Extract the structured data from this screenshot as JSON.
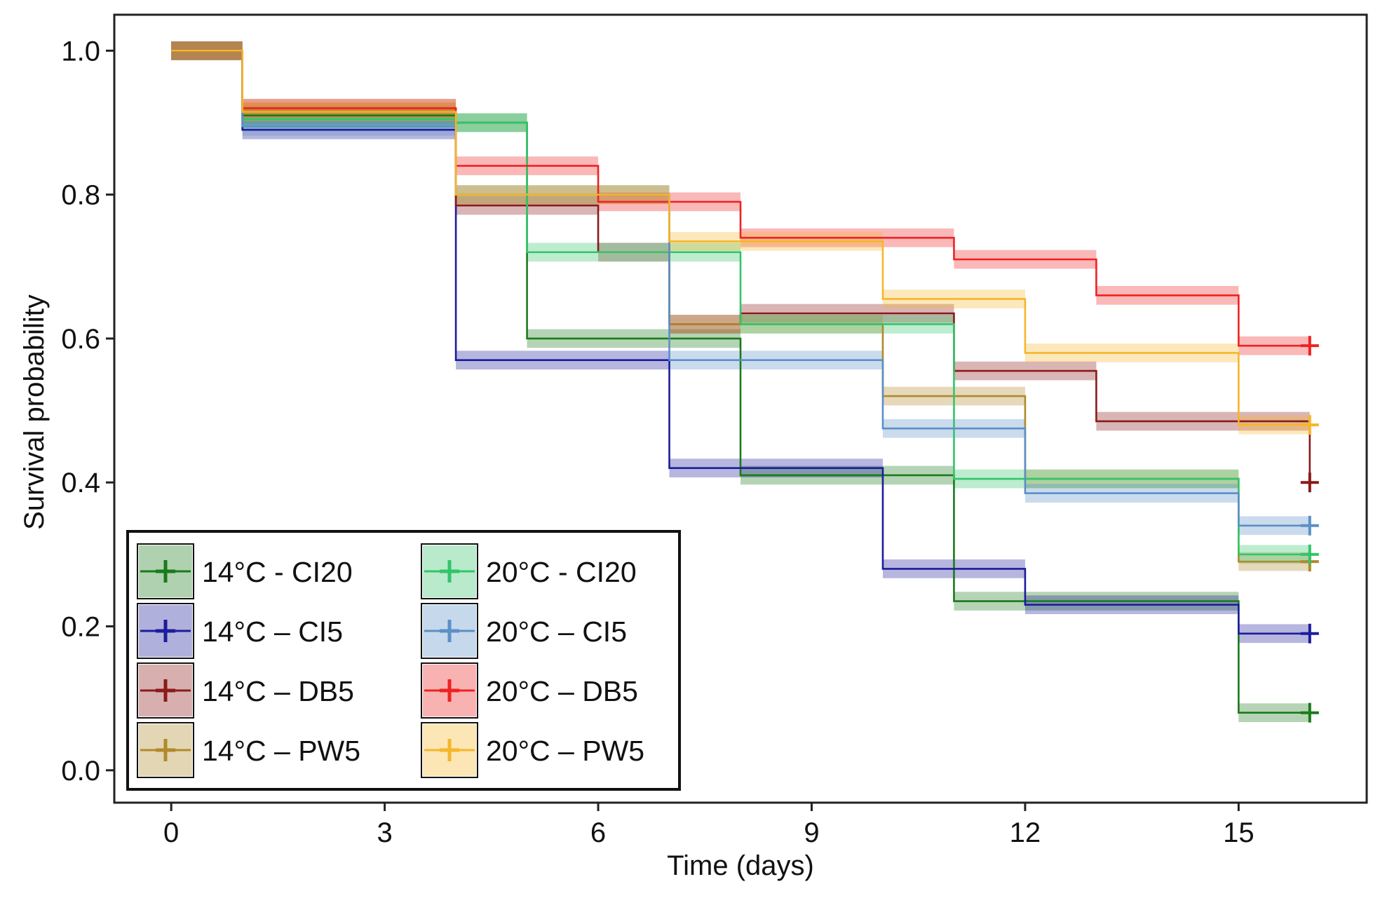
{
  "chart_data": {
    "type": "line",
    "subtype": "kaplan-meier-step",
    "xlabel": "Time (days)",
    "ylabel": "Survival probability",
    "xlim": [
      -0.8,
      16.8
    ],
    "ylim": [
      -0.045,
      1.05
    ],
    "xticks": [
      0,
      3,
      6,
      9,
      12,
      15
    ],
    "yticks": [
      0.0,
      0.2,
      0.4,
      0.6,
      0.8,
      1.0
    ],
    "xtick_labels": [
      "0",
      "3",
      "6",
      "9",
      "12",
      "15"
    ],
    "ytick_labels": [
      "0.0",
      "0.2",
      "0.4",
      "0.6",
      "0.8",
      "1.0"
    ],
    "grid": false,
    "confidence_band": true,
    "censor_marker": "plus",
    "legend_position": "bottom-left",
    "legend_columns": 2,
    "series": [
      {
        "name": "14°C - CI20",
        "color": "#1a7a1a",
        "x": [
          0,
          1,
          4,
          5,
          8,
          11,
          15,
          16
        ],
        "y": [
          1.0,
          0.91,
          0.9,
          0.6,
          0.41,
          0.235,
          0.08,
          0.08
        ]
      },
      {
        "name": "14°C – CI5",
        "color": "#1c1c9c",
        "x": [
          0,
          1,
          4,
          7,
          10,
          12,
          15,
          16
        ],
        "y": [
          1.0,
          0.89,
          0.57,
          0.42,
          0.28,
          0.23,
          0.19,
          0.19
        ]
      },
      {
        "name": "14°C – DB5",
        "color": "#8b1a1a",
        "x": [
          0,
          1,
          4,
          6,
          7,
          8,
          11,
          13,
          16
        ],
        "y": [
          1.0,
          0.915,
          0.785,
          0.72,
          0.62,
          0.635,
          0.555,
          0.485,
          0.4
        ]
      },
      {
        "name": "14°C – PW5",
        "color": "#b08a2a",
        "x": [
          0,
          1,
          4,
          7,
          10,
          12,
          15,
          16
        ],
        "y": [
          1.0,
          0.92,
          0.8,
          0.62,
          0.52,
          0.405,
          0.29,
          0.29
        ]
      },
      {
        "name": "20°C - CI20",
        "color": "#33c46a",
        "x": [
          0,
          1,
          4,
          5,
          8,
          11,
          15,
          16
        ],
        "y": [
          1.0,
          0.905,
          0.9,
          0.72,
          0.62,
          0.405,
          0.3,
          0.3
        ]
      },
      {
        "name": "20°C – CI5",
        "color": "#5b8fc7",
        "x": [
          0,
          1,
          4,
          7,
          10,
          12,
          15,
          16
        ],
        "y": [
          1.0,
          0.895,
          0.8,
          0.57,
          0.475,
          0.385,
          0.34,
          0.34
        ]
      },
      {
        "name": "20°C – DB5",
        "color": "#ee2222",
        "x": [
          0,
          1,
          4,
          6,
          8,
          11,
          13,
          15,
          16
        ],
        "y": [
          1.0,
          0.92,
          0.84,
          0.79,
          0.74,
          0.71,
          0.66,
          0.59,
          0.59
        ]
      },
      {
        "name": "20°C – PW5",
        "color": "#f5b62a",
        "x": [
          0,
          1,
          4,
          7,
          10,
          12,
          15,
          16
        ],
        "y": [
          1.0,
          0.915,
          0.8,
          0.735,
          0.655,
          0.58,
          0.48,
          0.48
        ]
      }
    ]
  }
}
